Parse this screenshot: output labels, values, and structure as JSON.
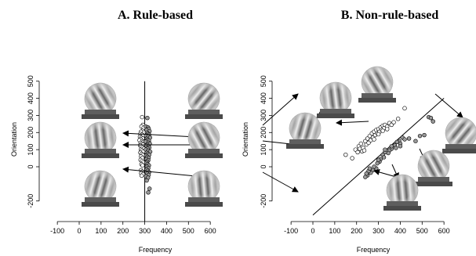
{
  "chart_data": [
    {
      "type": "scatter",
      "title": "A. Rule-based",
      "xlabel": "Frequency",
      "ylabel": "Orientation",
      "xlim": [
        -100,
        600
      ],
      "ylim": [
        -200,
        500
      ],
      "xticks": [
        "-100",
        "0",
        "100",
        "200",
        "300",
        "400",
        "500",
        "600"
      ],
      "yticks": [
        "-200",
        "0",
        "100",
        "200",
        "300",
        "400",
        "500"
      ],
      "grid": false,
      "boundary": {
        "type": "vertical",
        "x": 300
      },
      "stimulus_icons": 6,
      "series": [
        {
          "category": "A",
          "fill": "#ffffff",
          "points": [
            [
              288,
              290
            ],
            [
              292,
              245
            ],
            [
              285,
              235
            ],
            [
              295,
              228
            ],
            [
              290,
              210
            ],
            [
              283,
              205
            ],
            [
              297,
              200
            ],
            [
              280,
              192
            ],
            [
              288,
              188
            ],
            [
              293,
              182
            ],
            [
              278,
              175
            ],
            [
              285,
              170
            ],
            [
              291,
              165
            ],
            [
              282,
              160
            ],
            [
              276,
              155
            ],
            [
              289,
              150
            ],
            [
              294,
              145
            ],
            [
              281,
              140
            ],
            [
              286,
              135
            ],
            [
              292,
              130
            ],
            [
              279,
              125
            ],
            [
              284,
              118
            ],
            [
              290,
              112
            ],
            [
              296,
              105
            ],
            [
              282,
              100
            ],
            [
              287,
              95
            ],
            [
              293,
              88
            ],
            [
              280,
              82
            ],
            [
              286,
              75
            ],
            [
              291,
              68
            ],
            [
              283,
              60
            ],
            [
              289,
              52
            ],
            [
              281,
              40
            ],
            [
              288,
              33
            ],
            [
              293,
              25
            ],
            [
              285,
              15
            ],
            [
              290,
              8
            ],
            [
              283,
              -20
            ],
            [
              289,
              -28
            ],
            [
              284,
              -38
            ],
            [
              292,
              -44
            ],
            [
              286,
              -52
            ]
          ]
        },
        {
          "category": "B",
          "fill": "#9a9a9a",
          "points": [
            [
              312,
              285
            ],
            [
              305,
              235
            ],
            [
              315,
              230
            ],
            [
              318,
              222
            ],
            [
              308,
              215
            ],
            [
              322,
              208
            ],
            [
              310,
              200
            ],
            [
              314,
              193
            ],
            [
              320,
              187
            ],
            [
              306,
              182
            ],
            [
              316,
              176
            ],
            [
              324,
              170
            ],
            [
              309,
              164
            ],
            [
              313,
              158
            ],
            [
              319,
              152
            ],
            [
              304,
              147
            ],
            [
              317,
              141
            ],
            [
              323,
              135
            ],
            [
              311,
              129
            ],
            [
              307,
              124
            ],
            [
              318,
              118
            ],
            [
              321,
              112
            ],
            [
              313,
              106
            ],
            [
              305,
              100
            ],
            [
              316,
              94
            ],
            [
              325,
              88
            ],
            [
              309,
              82
            ],
            [
              314,
              76
            ],
            [
              320,
              70
            ],
            [
              306,
              64
            ],
            [
              312,
              58
            ],
            [
              318,
              52
            ],
            [
              308,
              45
            ],
            [
              316,
              38
            ],
            [
              311,
              30
            ],
            [
              307,
              22
            ],
            [
              313,
              15
            ],
            [
              319,
              8
            ],
            [
              310,
              0
            ],
            [
              316,
              -8
            ],
            [
              309,
              -16
            ],
            [
              314,
              -24
            ],
            [
              320,
              -32
            ],
            [
              311,
              -40
            ],
            [
              318,
              -48
            ],
            [
              306,
              -56
            ],
            [
              315,
              -64
            ],
            [
              309,
              -80
            ],
            [
              322,
              -128
            ],
            [
              316,
              -150
            ]
          ]
        }
      ]
    },
    {
      "type": "scatter",
      "title": "B. Non-rule-based",
      "xlabel": "Frequency",
      "ylabel": "Orientation",
      "xlim": [
        -100,
        600
      ],
      "ylim": [
        -200,
        500
      ],
      "xticks": [
        "-100",
        "0",
        "100",
        "200",
        "300",
        "400",
        "500",
        "600"
      ],
      "yticks": [
        "-200",
        "0",
        "100",
        "200",
        "300",
        "400",
        "500"
      ],
      "grid": false,
      "boundary": {
        "type": "line",
        "x1": 0,
        "y1": -200,
        "x2": 600,
        "y2": 400
      },
      "stimulus_icons": 6,
      "series": [
        {
          "category": "A",
          "fill": "#ffffff",
          "points": [
            [
              420,
              342
            ],
            [
              150,
              70
            ],
            [
              180,
              50
            ],
            [
              195,
              100
            ],
            [
              205,
              85
            ],
            [
              210,
              120
            ],
            [
              215,
              105
            ],
            [
              220,
              135
            ],
            [
              225,
              90
            ],
            [
              230,
              110
            ],
            [
              235,
              95
            ],
            [
              240,
              150
            ],
            [
              245,
              130
            ],
            [
              250,
              165
            ],
            [
              255,
              140
            ],
            [
              260,
              180
            ],
            [
              265,
              155
            ],
            [
              270,
              195
            ],
            [
              275,
              170
            ],
            [
              280,
              205
            ],
            [
              285,
              185
            ],
            [
              290,
              215
            ],
            [
              295,
              195
            ],
            [
              300,
              220
            ],
            [
              305,
              205
            ],
            [
              310,
              230
            ],
            [
              315,
              215
            ],
            [
              320,
              240
            ],
            [
              325,
              225
            ],
            [
              330,
              245
            ],
            [
              340,
              235
            ],
            [
              350,
              255
            ],
            [
              360,
              245
            ],
            [
              370,
              260
            ],
            [
              390,
              280
            ],
            [
              280,
              160
            ],
            [
              300,
              190
            ],
            [
              320,
              210
            ],
            [
              340,
              220
            ]
          ]
        },
        {
          "category": "B",
          "fill": "#9a9a9a",
          "points": [
            [
              530,
              290
            ],
            [
              540,
              285
            ],
            [
              550,
              265
            ],
            [
              490,
              180
            ],
            [
              510,
              185
            ],
            [
              470,
              150
            ],
            [
              410,
              170
            ],
            [
              395,
              150
            ],
            [
              400,
              135
            ],
            [
              385,
              145
            ],
            [
              375,
              125
            ],
            [
              380,
              110
            ],
            [
              360,
              105
            ],
            [
              350,
              95
            ],
            [
              345,
              80
            ],
            [
              330,
              85
            ],
            [
              320,
              70
            ],
            [
              325,
              55
            ],
            [
              310,
              45
            ],
            [
              305,
              30
            ],
            [
              295,
              20
            ],
            [
              290,
              -10
            ],
            [
              280,
              0
            ],
            [
              275,
              -20
            ],
            [
              265,
              -35
            ],
            [
              255,
              -25
            ],
            [
              250,
              -50
            ],
            [
              245,
              -40
            ],
            [
              240,
              -60
            ],
            [
              260,
              -10
            ],
            [
              300,
              40
            ],
            [
              330,
              100
            ],
            [
              360,
              120
            ],
            [
              420,
              160
            ],
            [
              440,
              165
            ],
            [
              400,
              120
            ]
          ]
        }
      ]
    }
  ]
}
